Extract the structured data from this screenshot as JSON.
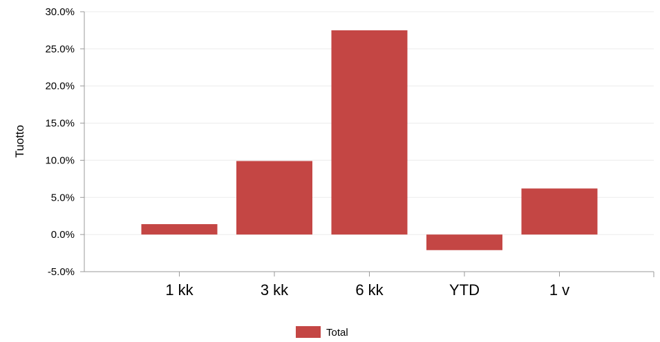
{
  "chart_data": {
    "type": "bar",
    "categories": [
      "1 kk",
      "3 kk",
      "6 kk",
      "YTD",
      "1 v"
    ],
    "series": [
      {
        "name": "Total",
        "color": "#c44644",
        "values": [
          1.4,
          9.9,
          27.5,
          -2.1,
          6.2
        ]
      }
    ],
    "xlabel": "",
    "ylabel": "Tuotto",
    "ylim": [
      -5,
      30
    ],
    "yticks": [
      -5,
      0,
      5,
      10,
      15,
      20,
      25,
      30
    ],
    "ytick_labels": [
      "-5.0%",
      "0.0%",
      "5.0%",
      "10.0%",
      "15.0%",
      "20.0%",
      "25.0%",
      "30.0%"
    ],
    "grid": true,
    "legend": "bottom-center"
  }
}
